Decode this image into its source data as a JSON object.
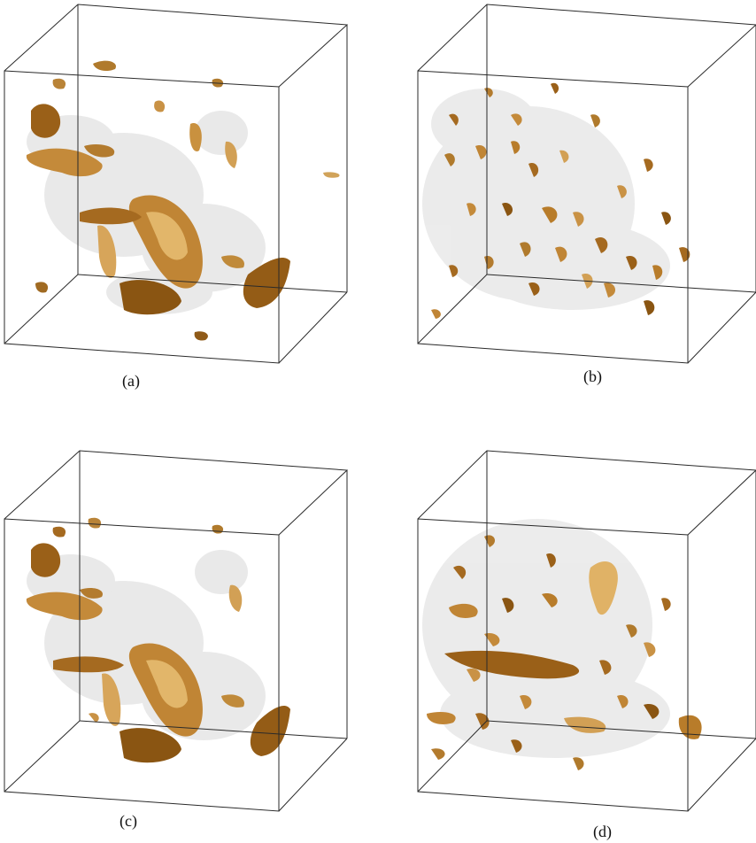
{
  "figure": {
    "panels": [
      {
        "label": "(a)"
      },
      {
        "label": "(b)"
      },
      {
        "label": "(c)"
      },
      {
        "label": "(d)"
      }
    ],
    "colors": {
      "frame": "#2a2a2a",
      "isosurface_dark": "#8a5512",
      "isosurface_mid": "#b87c2a",
      "isosurface_light": "#e0b266",
      "haze": "#c8c8c8"
    }
  }
}
